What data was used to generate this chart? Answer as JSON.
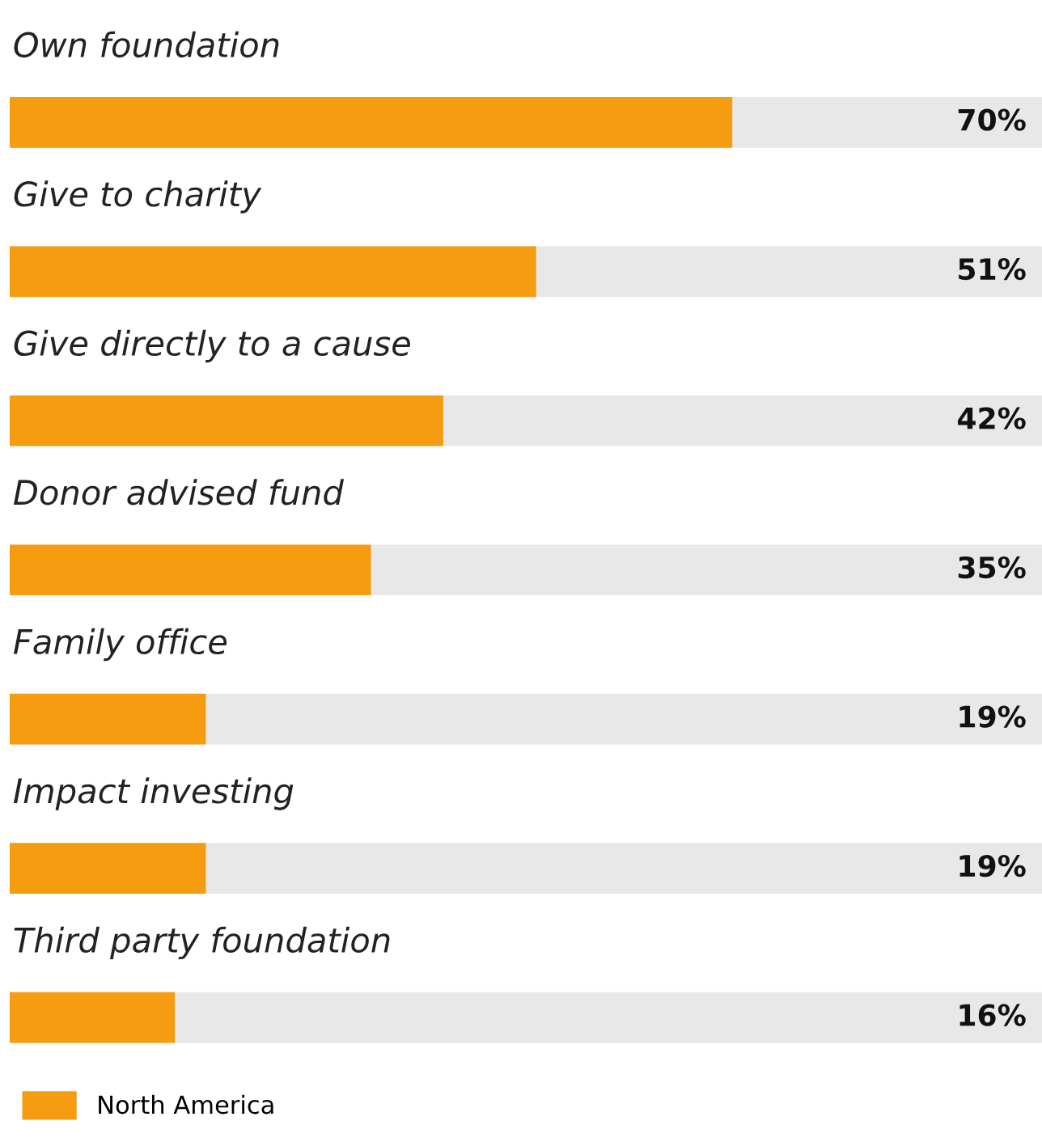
{
  "chart_data": {
    "type": "bar",
    "orientation": "horizontal",
    "legend": "bottom left",
    "xlim": [
      0,
      100
    ],
    "categories": [
      "Own foundation",
      "Give to charity",
      "Give directly to a cause",
      "Donor advised fund",
      "Family office",
      "Impact investing",
      "Third party foundation"
    ],
    "series": [
      {
        "name": "North America",
        "color": "#f59c11",
        "values": [
          70,
          51,
          42,
          35,
          19,
          19,
          16
        ],
        "value_labels": [
          "70%",
          "51%",
          "42%",
          "35%",
          "19%",
          "19%",
          "16%"
        ]
      }
    ]
  }
}
